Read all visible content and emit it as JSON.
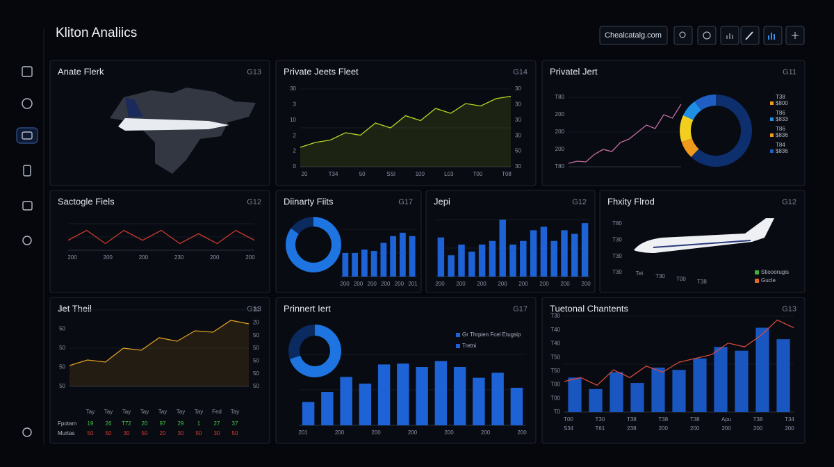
{
  "header": {
    "title": "Kliton Analiics",
    "search": "Chealcatalg.com"
  },
  "panels": [
    {
      "title": "Anate Flerk",
      "badge": "G13"
    },
    {
      "title": "Private Jeets Fleet",
      "badge": "G14",
      "line": {
        "values": [
          8,
          10,
          11,
          14,
          13,
          18,
          16,
          21,
          19,
          24,
          22,
          26,
          25,
          28,
          29
        ],
        "color": "#b9d624",
        "area": true
      },
      "ylim": [
        0,
        32
      ],
      "left_labels": [
        "30",
        "3",
        "10",
        "2",
        "2",
        "0"
      ],
      "right_labels": [
        "30",
        "30",
        "30",
        "30",
        "50",
        "30"
      ],
      "bottom_labels": [
        "20",
        "T34",
        "50",
        "SSI",
        "100",
        "L03",
        "T00",
        "T08"
      ]
    },
    {
      "title": "Privatel Jert",
      "badge": "G11",
      "line": {
        "values": [
          5,
          8,
          7,
          18,
          25,
          22,
          35,
          40,
          50,
          60,
          55,
          75,
          70,
          90
        ],
        "color": "#c86fa3",
        "area": false
      },
      "ylim": [
        0,
        100
      ],
      "left_labels": [
        "T80",
        "200",
        "200",
        "200",
        "T80"
      ],
      "donut": {
        "values": [
          62,
          8,
          12,
          8,
          10
        ],
        "colors": [
          "#0d2f6e",
          "#f09a1c",
          "#f2cf1e",
          "#1e8fe6",
          "#1f5fc4"
        ]
      },
      "legend": [
        {
          "name": "T38",
          "value": "$800",
          "color": "#f09a1c"
        },
        {
          "name": "T86",
          "value": "$833",
          "color": "#1e8fe6"
        },
        {
          "name": "T86",
          "value": "$836",
          "color": "#f09a1c"
        },
        {
          "name": "T84",
          "value": "$836",
          "color": "#1f5fc4"
        }
      ]
    },
    {
      "title": "Sactogle Fiels",
      "badge": "G12",
      "line": {
        "values": [
          3,
          6,
          2,
          6,
          3,
          6,
          2,
          5,
          2,
          6,
          3
        ],
        "color": "#c93a2a",
        "area": false
      },
      "ylim": [
        0,
        8
      ],
      "bottom_labels": [
        "200",
        "200",
        "200",
        "230",
        "200",
        "200"
      ]
    },
    {
      "title": "Diinarty Fiits",
      "badge": "G17",
      "donut": {
        "values": [
          85,
          15
        ],
        "colors": [
          "#1e74e0",
          "#0b2a60"
        ]
      },
      "bars": {
        "values": [
          35,
          35,
          40,
          38,
          50,
          60,
          65,
          60
        ],
        "color": "#1e63d6"
      },
      "ylim": [
        0,
        70
      ],
      "bottom_labels": [
        "200",
        "200",
        "200",
        "200",
        "200",
        "201"
      ]
    },
    {
      "title": "Jepi",
      "badge": "G12",
      "bars": {
        "values": [
          55,
          30,
          45,
          35,
          45,
          50,
          80,
          45,
          50,
          65,
          70,
          50,
          65,
          60,
          75
        ],
        "color": "#1e63d6"
      },
      "ylim": [
        0,
        80
      ],
      "bottom_labels": [
        "200",
        "200",
        "200",
        "200",
        "200",
        "200",
        "200",
        "200"
      ]
    },
    {
      "title": "Fhxity Flrod",
      "badge": "G12",
      "left_labels": [
        "T80",
        "T30",
        "T30",
        "T30"
      ],
      "bottom_labels": [
        "Tet",
        "T30",
        "T00",
        "T38"
      ],
      "legend": [
        {
          "name": "Stiooorugis",
          "color": "#3fae3a"
        },
        {
          "name": "Gucle",
          "color": "#e0662a"
        }
      ]
    },
    {
      "title": "Jet Theil",
      "badge": "G13",
      "line": {
        "values": [
          30,
          38,
          35,
          55,
          52,
          70,
          65,
          80,
          78,
          95,
          90
        ],
        "color": "#e0a020",
        "area": true
      },
      "ylim": [
        0,
        110
      ],
      "left_labels": [
        "50",
        "50",
        "50",
        "50",
        "50"
      ],
      "right_labels": [
        "20",
        "20",
        "50",
        "50",
        "50",
        "50",
        "50"
      ],
      "table": {
        "columns": [
          "Tay",
          "Tay",
          "Tay",
          "Tay",
          "Tay",
          "Tay",
          "Tay",
          "Fed",
          "Tay"
        ],
        "rows": [
          {
            "name": "Fpotam",
            "color": "#49c24a",
            "values": [
              "19",
              "26",
              "T72",
              "20",
              "97",
              "29",
              "1",
              "27",
              "37"
            ]
          },
          {
            "name": "Murtas",
            "color": "#e03a30",
            "values": [
              "50",
              "50",
              "30",
              "50",
              "20",
              "30",
              "50",
              "30",
              "50"
            ]
          }
        ]
      }
    },
    {
      "title": "Prinnert Iert",
      "badge": "G17",
      "donut": {
        "values": [
          70,
          30
        ],
        "colors": [
          "#1e74e0",
          "#0b2a60"
        ]
      },
      "legend": [
        {
          "name": "Gr Thrpien Fcel Etugsip",
          "color": "#1e63d6"
        },
        {
          "name": "Tretni",
          "color": "#1e63d6"
        }
      ],
      "bars": {
        "values": [
          28,
          40,
          58,
          50,
          73,
          74,
          70,
          77,
          70,
          57,
          63,
          45
        ],
        "color": "#1e63d6"
      },
      "ylim": [
        0,
        85
      ],
      "bottom_labels": [
        "201",
        "200",
        "200",
        "200",
        "200",
        "200",
        "200"
      ]
    },
    {
      "title": "Tuetonal Chantents",
      "badge": "G13",
      "bars": {
        "values": [
          45,
          30,
          52,
          38,
          58,
          55,
          70,
          85,
          80,
          110,
          95
        ],
        "color": "#1a56c0"
      },
      "line": {
        "values": [
          40,
          45,
          35,
          55,
          45,
          60,
          52,
          65,
          70,
          75,
          90,
          85,
          100,
          120,
          110
        ],
        "color": "#d84a3a",
        "area": false
      },
      "ylim": [
        0,
        125
      ],
      "left_labels": [
        "T30",
        "T40",
        "T40",
        "T50",
        "T50",
        "T00",
        "T00",
        "T0"
      ],
      "bottom_labels": [
        "T00",
        "T30",
        "T38",
        "T38",
        "T38",
        "Apu",
        "T38",
        "T34"
      ],
      "bottom2_labels": [
        "S34",
        "T61",
        "238",
        "200",
        "200",
        "200",
        "200",
        "200"
      ]
    }
  ]
}
